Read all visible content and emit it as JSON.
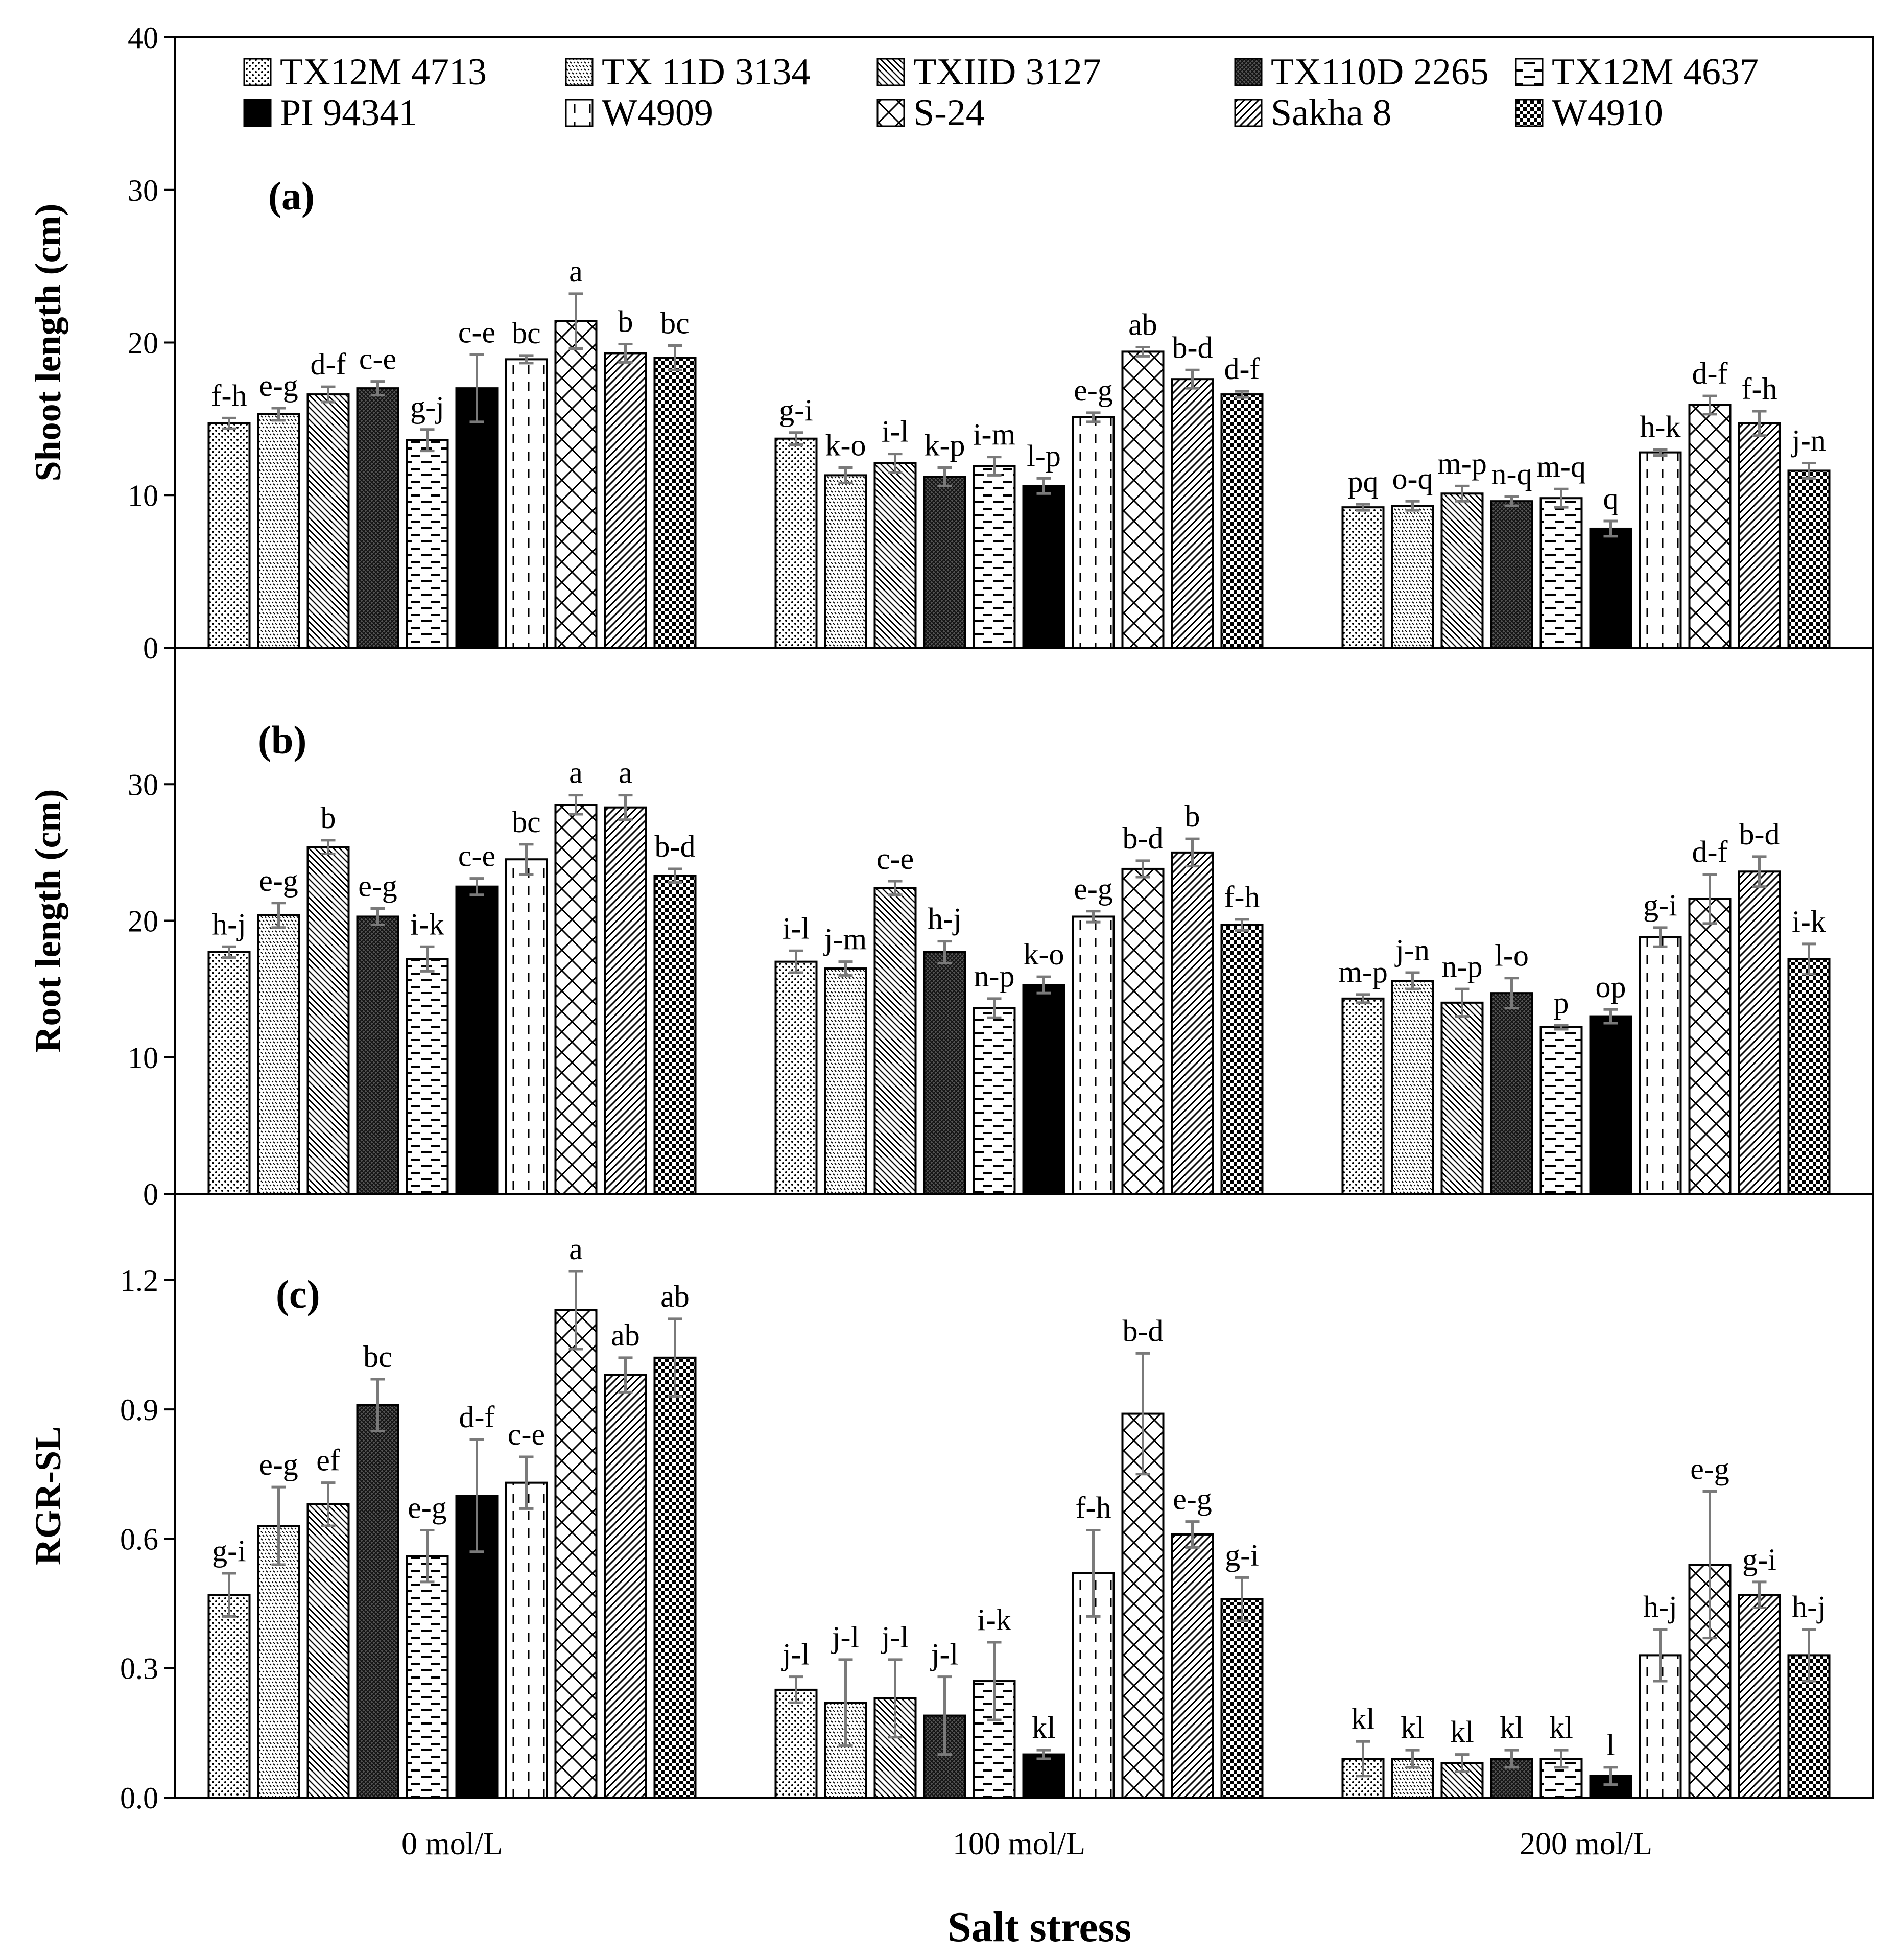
{
  "chart_data": {
    "type": "bar",
    "xlabel": "Salt stress",
    "categories": [
      "0 mol/L",
      "100 mol/L",
      "200 mol/L"
    ],
    "series_names": [
      "TX12M 4713",
      "TX 11D 3134",
      "TXIID 3127",
      "TX110D 2265",
      "TX12M 4637",
      "PI 94341",
      "W4909",
      "S-24",
      "Sakha 8",
      "W4910"
    ],
    "panels": [
      {
        "tag": "(a)",
        "ylabel": "Shoot length (cm)",
        "ylim": [
          0,
          40
        ],
        "ticks": [
          "0",
          "10",
          "20",
          "30",
          "40"
        ],
        "tick_values": [
          0,
          10,
          20,
          30,
          40
        ],
        "values": [
          [
            14.7,
            15.3,
            16.6,
            17.0,
            13.6,
            17.0,
            18.9,
            21.4,
            19.3,
            19.0
          ],
          [
            13.7,
            11.3,
            12.1,
            11.2,
            11.9,
            10.6,
            15.1,
            19.4,
            17.6,
            16.6
          ],
          [
            9.2,
            9.3,
            10.1,
            9.6,
            9.8,
            7.8,
            12.8,
            15.9,
            14.7,
            11.6
          ]
        ],
        "errors": [
          [
            0.35,
            0.4,
            0.5,
            0.45,
            0.7,
            2.2,
            0.25,
            1.8,
            0.6,
            0.8
          ],
          [
            0.4,
            0.5,
            0.6,
            0.6,
            0.6,
            0.5,
            0.3,
            0.3,
            0.6,
            0.2
          ],
          [
            0.2,
            0.3,
            0.5,
            0.3,
            0.6,
            0.5,
            0.2,
            0.6,
            0.8,
            0.5
          ]
        ],
        "letters": [
          [
            "f-h",
            "e-g",
            "d-f",
            "c-e",
            "g-j",
            "c-e",
            "bc",
            "a",
            "b",
            "bc"
          ],
          [
            "g-i",
            "k-o",
            "i-l",
            "k-p",
            "i-m",
            "l-p",
            "e-g",
            "ab",
            "b-d",
            "d-f"
          ],
          [
            "pq",
            "o-q",
            "m-p",
            "n-q",
            "m-q",
            "q",
            "h-k",
            "d-f",
            "f-h",
            "j-n"
          ]
        ]
      },
      {
        "tag": "(b)",
        "ylabel": "Root length (cm)",
        "ylim": [
          0,
          40
        ],
        "ticks": [
          "0",
          "10",
          "20",
          "30"
        ],
        "tick_values": [
          0,
          10,
          20,
          30
        ],
        "values": [
          [
            17.7,
            20.4,
            25.4,
            20.3,
            17.2,
            22.5,
            24.5,
            28.5,
            28.3,
            23.3
          ],
          [
            17.0,
            16.5,
            22.4,
            17.7,
            13.6,
            15.3,
            20.3,
            23.8,
            25.0,
            19.7
          ],
          [
            14.3,
            15.6,
            14.0,
            14.7,
            12.2,
            13.0,
            18.8,
            21.6,
            23.6,
            17.2
          ]
        ],
        "errors": [
          [
            0.4,
            0.9,
            0.5,
            0.6,
            0.9,
            0.6,
            1.1,
            0.7,
            0.9,
            0.5
          ],
          [
            0.8,
            0.5,
            0.5,
            0.8,
            0.7,
            0.6,
            0.4,
            0.6,
            1.0,
            0.4
          ],
          [
            0.3,
            0.6,
            1.0,
            1.1,
            0.15,
            0.5,
            0.7,
            1.8,
            1.1,
            1.1
          ]
        ],
        "letters": [
          [
            "h-j",
            "e-g",
            "b",
            "e-g",
            "i-k",
            "c-e",
            "bc",
            "a",
            "a",
            "b-d"
          ],
          [
            "i-l",
            "j-m",
            "c-e",
            "h-j",
            "n-p",
            "k-o",
            "e-g",
            "b-d",
            "b",
            "f-h"
          ],
          [
            "m-p",
            "j-n",
            "n-p",
            "l-o",
            "p",
            "op",
            "g-i",
            "d-f",
            "b-d",
            "i-k"
          ]
        ]
      },
      {
        "tag": "(c)",
        "ylabel": "RGR-SL",
        "ylim": [
          0,
          1.4
        ],
        "ticks": [
          "0.0",
          "0.3",
          "0.6",
          "0.9",
          "1.2"
        ],
        "tick_values": [
          0,
          0.3,
          0.6,
          0.9,
          1.2
        ],
        "values": [
          [
            0.47,
            0.63,
            0.68,
            0.91,
            0.56,
            0.7,
            0.73,
            1.13,
            0.98,
            1.02
          ],
          [
            0.25,
            0.22,
            0.23,
            0.19,
            0.27,
            0.1,
            0.52,
            0.89,
            0.61,
            0.46
          ],
          [
            0.09,
            0.09,
            0.08,
            0.09,
            0.09,
            0.05,
            0.33,
            0.54,
            0.47,
            0.33
          ]
        ],
        "errors": [
          [
            0.05,
            0.09,
            0.05,
            0.06,
            0.06,
            0.13,
            0.06,
            0.09,
            0.04,
            0.09
          ],
          [
            0.03,
            0.1,
            0.09,
            0.09,
            0.09,
            0.01,
            0.1,
            0.14,
            0.03,
            0.05
          ],
          [
            0.04,
            0.02,
            0.02,
            0.02,
            0.02,
            0.02,
            0.06,
            0.17,
            0.03,
            0.06
          ]
        ],
        "letters": [
          [
            "g-i",
            "e-g",
            "ef",
            "bc",
            "e-g",
            "d-f",
            "c-e",
            "a",
            "ab",
            "ab"
          ],
          [
            "j-l",
            "j-l",
            "j-l",
            "j-l",
            "i-k",
            "kl",
            "f-h",
            "b-d",
            "e-g",
            "g-i"
          ],
          [
            "kl",
            "kl",
            "kl",
            "kl",
            "kl",
            "l",
            "h-j",
            "e-g",
            "g-i",
            "h-j"
          ]
        ]
      }
    ]
  }
}
